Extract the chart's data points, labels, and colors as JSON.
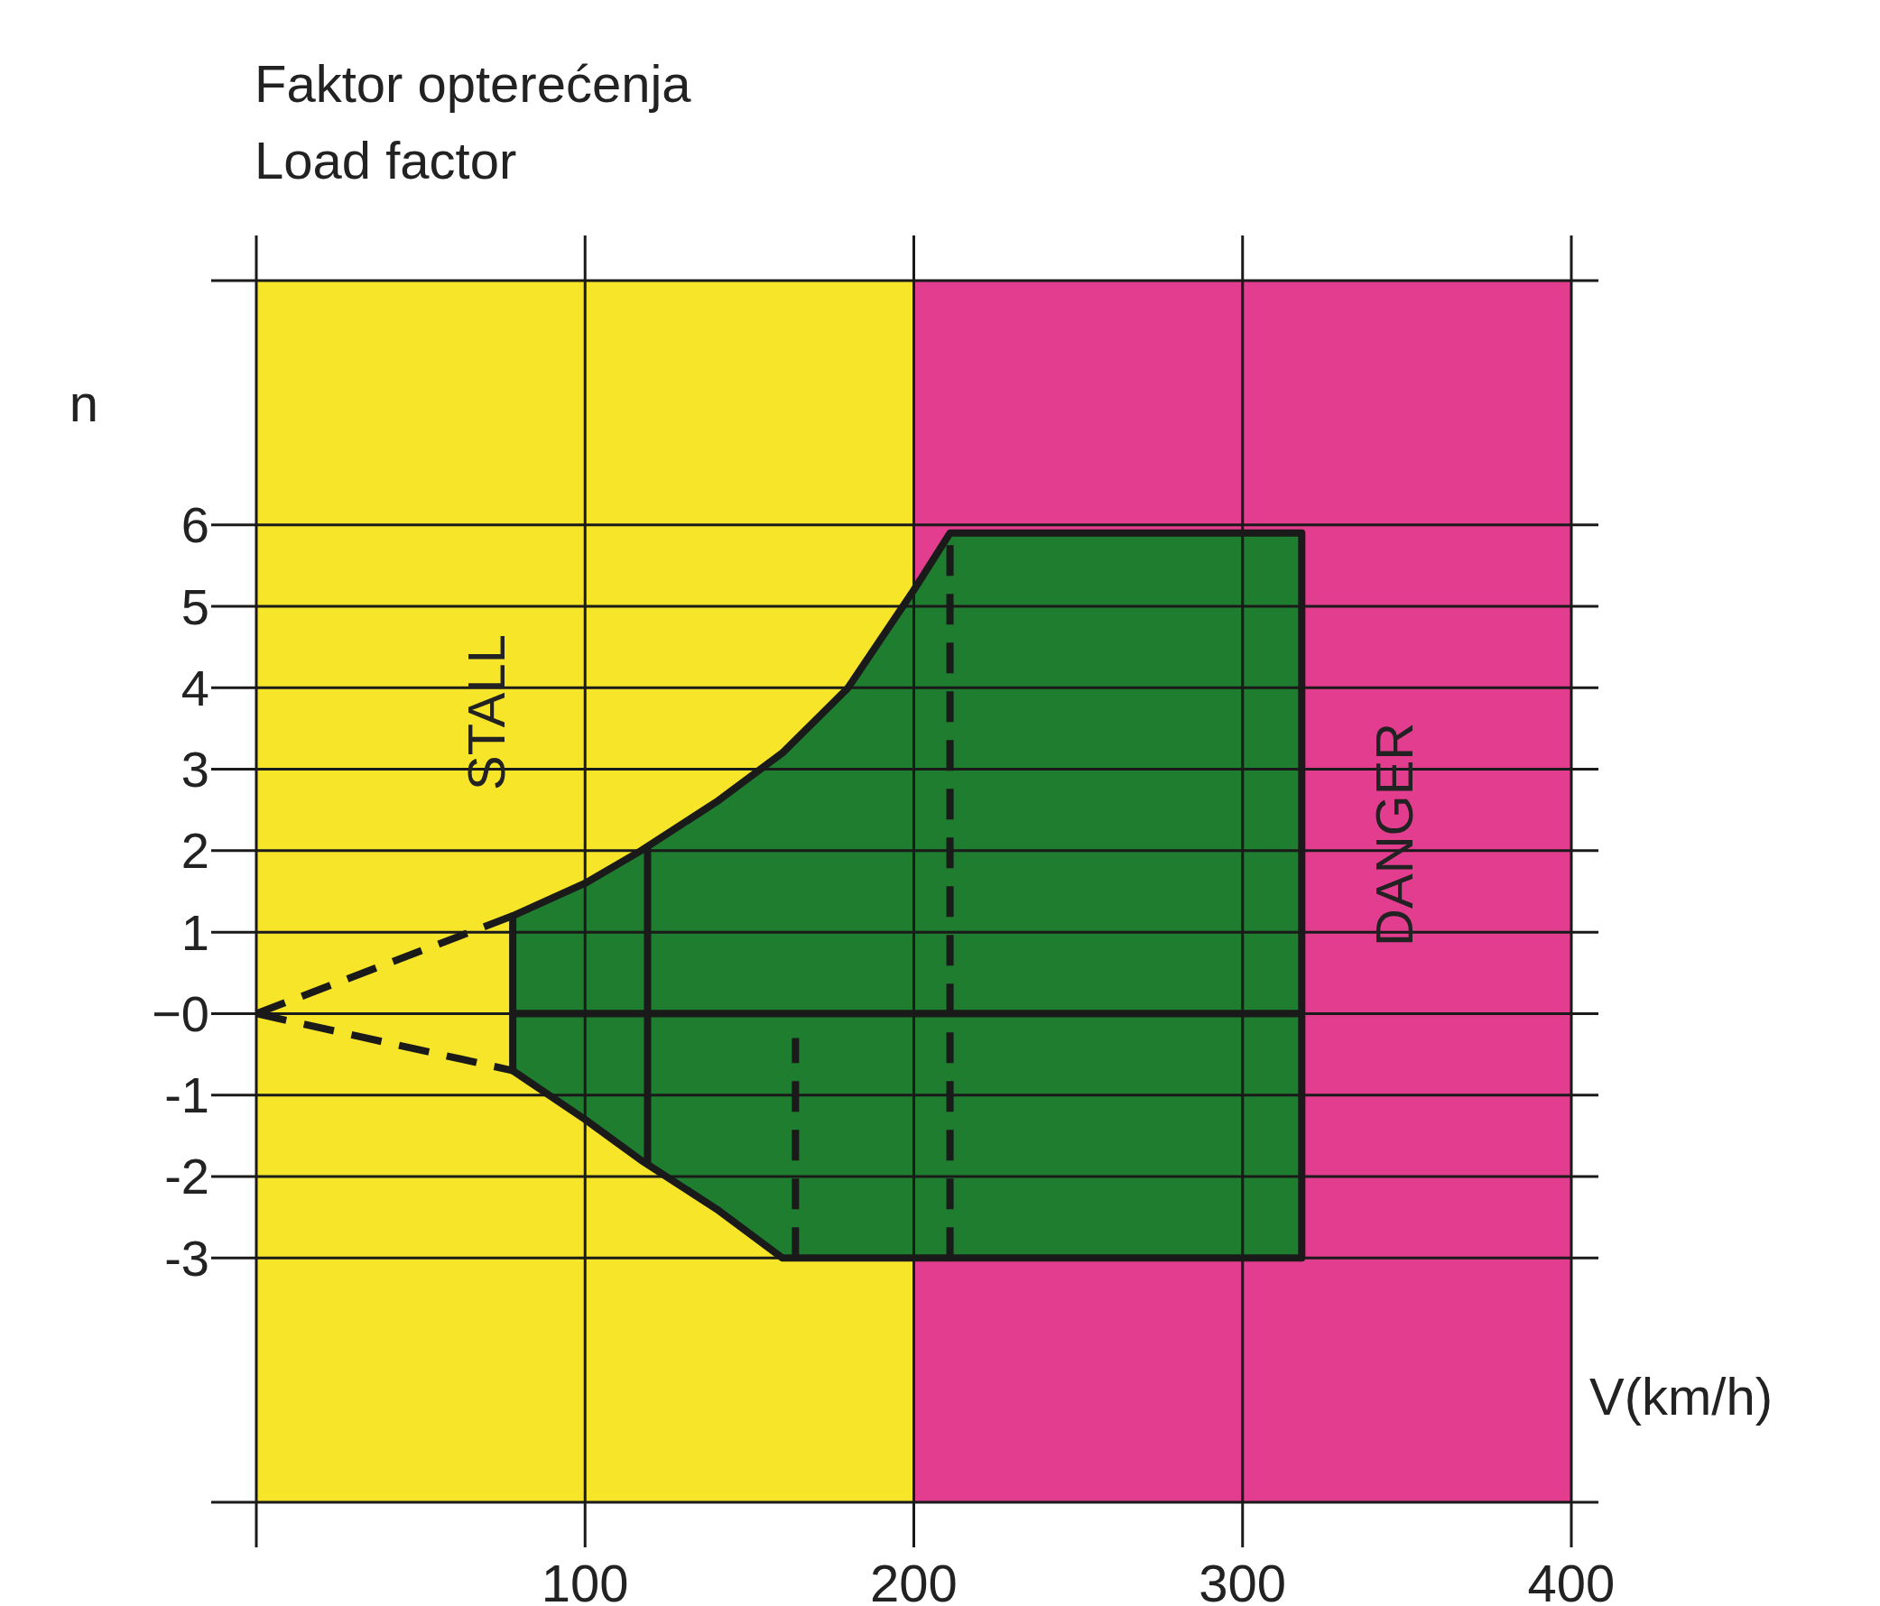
{
  "chart_data": {
    "type": "area",
    "title": "Faktor opterećenja",
    "subtitle": "Load factor",
    "ylabel": "n",
    "xlabel": "V(km/h)",
    "xlim": [
      0,
      400
    ],
    "ylim": [
      -6,
      9
    ],
    "xticks": [
      {
        "value": 0,
        "label": null
      },
      100,
      200,
      300,
      400
    ],
    "yticks": [
      {
        "value": 9,
        "label": null
      },
      6,
      5,
      4,
      3,
      2,
      1,
      {
        "value": 0,
        "label": "−0"
      },
      -1,
      -2,
      -3,
      {
        "value": -6,
        "label": null
      }
    ],
    "grid": true,
    "bands": [
      {
        "axis": "x",
        "from": 0,
        "to": 200,
        "label": "STALL",
        "color": "#f7e52a"
      },
      {
        "axis": "x",
        "from": 200,
        "to": 400,
        "label": "DANGER",
        "color": "#e23d8f"
      }
    ],
    "series": [
      {
        "color": "#1f7d2f",
        "x": [
          78,
          100,
          117,
          140,
          160,
          180,
          200,
          211,
          318
        ],
        "values": [
          1.2,
          1.6,
          2.0,
          2.6,
          3.2,
          4.0,
          5.2,
          5.9,
          5.9
        ]
      },
      {
        "color": "#1f7d2f",
        "x": [
          78,
          100,
          117,
          140,
          160,
          180,
          200,
          211,
          318
        ],
        "values": [
          -0.7,
          -1.3,
          -1.8,
          -2.4,
          -3,
          -3,
          -3,
          -3,
          -3
        ]
      },
      {
        "type": "line",
        "color": "#1a1a1a",
        "line_style": "dashed",
        "x": [
          0,
          78
        ],
        "values": [
          0,
          1.2
        ]
      },
      {
        "type": "line",
        "color": "#1a1a1a",
        "line_style": "dashed",
        "x": [
          0,
          78
        ],
        "values": [
          0,
          -0.7
        ]
      },
      {
        "type": "line",
        "color": "#1a1a1a",
        "line_style": "solid",
        "x": [
          119,
          119
        ],
        "values": [
          -1.85,
          2.05
        ]
      },
      {
        "type": "line",
        "color": "#1a1a1a",
        "line_style": "dashed",
        "x": [
          164,
          164
        ],
        "values": [
          -3,
          -0.3
        ]
      },
      {
        "type": "line",
        "color": "#1a1a1a",
        "line_style": "dashed",
        "x": [
          211,
          211
        ],
        "values": [
          -3,
          5.9
        ]
      }
    ]
  }
}
